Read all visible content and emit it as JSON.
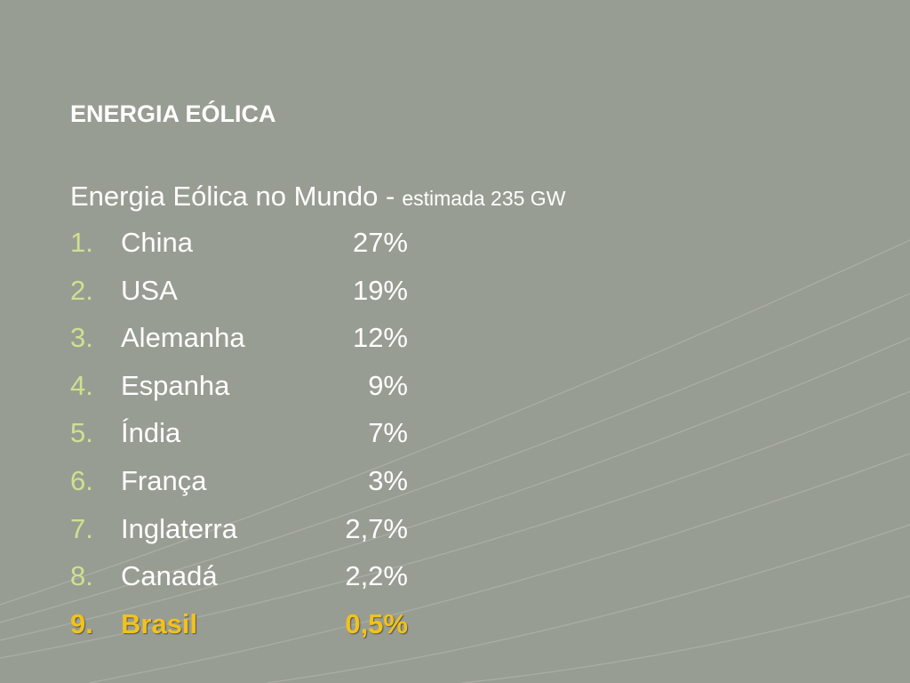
{
  "title": "ENERGIA EÓLICA",
  "subtitle": {
    "main": "Energia Eólica no Mundo -",
    "note": "estimada 235 GW"
  },
  "list": [
    {
      "number": "1.",
      "country": "China",
      "share": "27%"
    },
    {
      "number": "2.",
      "country": "USA",
      "share": "19%"
    },
    {
      "number": "3.",
      "country": "Alemanha",
      "share": "12%"
    },
    {
      "number": "4.",
      "country": "Espanha",
      "share": "9%"
    },
    {
      "number": "5.",
      "country": "Índia",
      "share": "7%"
    },
    {
      "number": "6.",
      "country": "França",
      "share": "3%"
    },
    {
      "number": "7.",
      "country": "Inglaterra",
      "share": "2,7%"
    },
    {
      "number": "8.",
      "country": "Canadá",
      "share": "2,2%"
    },
    {
      "number": "9.",
      "country": "Brasil",
      "share": "0,5%"
    }
  ]
}
